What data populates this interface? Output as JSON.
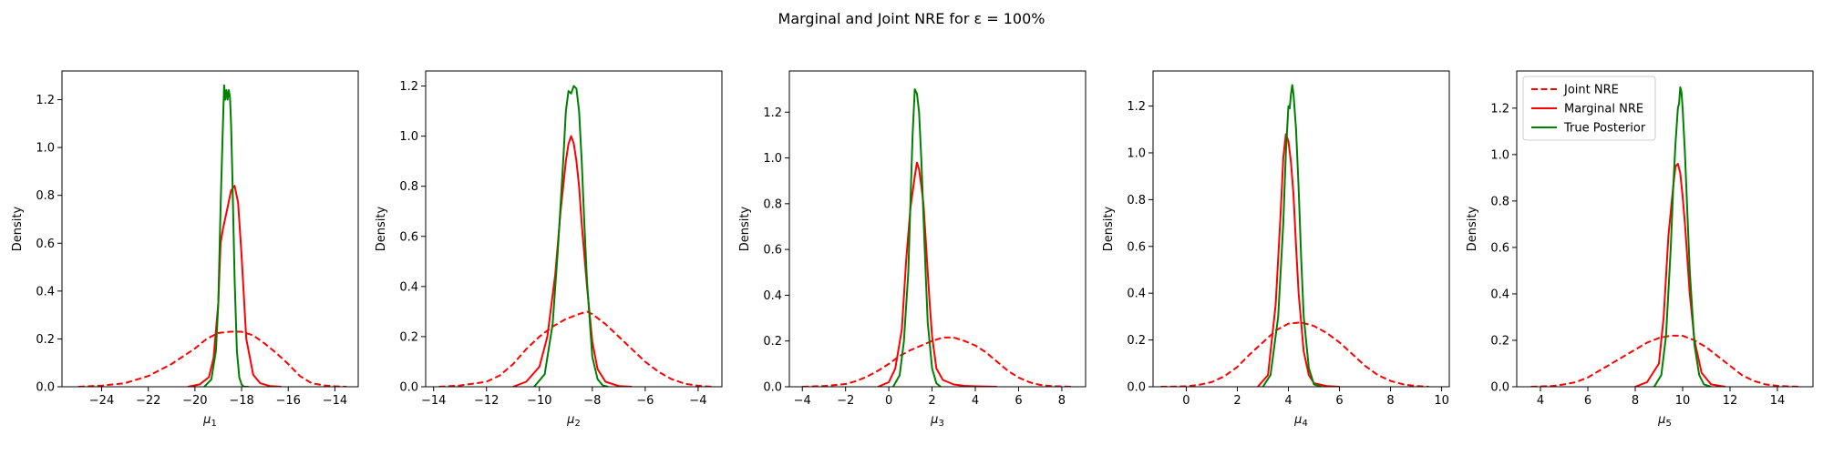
{
  "figure": {
    "title": "Marginal and Joint NRE for ε = 100%",
    "ylabel": "Density",
    "legend_entries": [
      "Joint NRE",
      "Marginal NRE",
      "True Posterior"
    ]
  },
  "colors": {
    "joint": "#ff0000",
    "marginal": "#ff0000",
    "true": "#008000"
  },
  "chart_data": [
    {
      "type": "line",
      "xlabel": "μ1",
      "ylabel": "Density",
      "xlim": [
        -25.7,
        -13.0
      ],
      "ylim": [
        0,
        1.32
      ],
      "xticks": [
        -24,
        -22,
        -20,
        -18,
        -16,
        -14
      ],
      "xtick_labels": [
        "−24",
        "−22",
        "−20",
        "−18",
        "−16",
        "−14"
      ],
      "yticks": [
        0.0,
        0.2,
        0.4,
        0.6,
        0.8,
        1.0,
        1.2
      ],
      "ytick_labels": [
        "0.0",
        "0.2",
        "0.4",
        "0.6",
        "0.8",
        "1.0",
        "1.2"
      ],
      "series": [
        {
          "name": "Joint NRE",
          "style": "dashed",
          "color": "#ff0000",
          "x": [
            -25.0,
            -24.0,
            -23.0,
            -22.0,
            -21.0,
            -20.0,
            -19.5,
            -19.0,
            -18.5,
            -18.0,
            -17.5,
            -17.0,
            -16.5,
            -16.0,
            -15.5,
            -15.0,
            -14.5,
            -14.0,
            -13.5
          ],
          "y": [
            0.0,
            0.005,
            0.015,
            0.045,
            0.095,
            0.16,
            0.2,
            0.225,
            0.23,
            0.23,
            0.215,
            0.18,
            0.14,
            0.095,
            0.045,
            0.015,
            0.006,
            0.002,
            0.0
          ]
        },
        {
          "name": "Marginal NRE",
          "style": "solid",
          "color": "#ff0000",
          "x": [
            -20.3,
            -19.8,
            -19.4,
            -19.2,
            -19.0,
            -18.9,
            -18.8,
            -18.6,
            -18.45,
            -18.3,
            -18.15,
            -18.0,
            -17.8,
            -17.5,
            -17.2,
            -16.8,
            -16.3
          ],
          "y": [
            0.0,
            0.01,
            0.04,
            0.12,
            0.35,
            0.6,
            0.66,
            0.75,
            0.82,
            0.84,
            0.77,
            0.55,
            0.2,
            0.05,
            0.015,
            0.003,
            0.0
          ]
        },
        {
          "name": "True Posterior",
          "style": "solid",
          "color": "#008000",
          "x": [
            -19.6,
            -19.3,
            -19.1,
            -19.0,
            -18.9,
            -18.8,
            -18.75,
            -18.7,
            -18.65,
            -18.6,
            -18.55,
            -18.5,
            -18.45,
            -18.4,
            -18.3,
            -18.2,
            -18.1,
            -18.0,
            -17.9,
            -17.7
          ],
          "y": [
            0.0,
            0.03,
            0.15,
            0.35,
            0.75,
            1.1,
            1.26,
            1.2,
            1.24,
            1.2,
            1.24,
            1.21,
            1.1,
            0.9,
            0.45,
            0.15,
            0.04,
            0.01,
            0.0,
            0.0
          ]
        }
      ]
    },
    {
      "type": "line",
      "xlabel": "μ2",
      "ylabel": "Density",
      "xlim": [
        -14.3,
        -3.1
      ],
      "ylim": [
        0,
        1.26
      ],
      "xticks": [
        -14,
        -12,
        -10,
        -8,
        -6,
        -4
      ],
      "xtick_labels": [
        "−14",
        "−12",
        "−10",
        "−8",
        "−6",
        "−4"
      ],
      "yticks": [
        0.0,
        0.2,
        0.4,
        0.6,
        0.8,
        1.0,
        1.2
      ],
      "ytick_labels": [
        "0.0",
        "0.2",
        "0.4",
        "0.6",
        "0.8",
        "1.0",
        "1.2"
      ],
      "series": [
        {
          "name": "Joint NRE",
          "style": "dashed",
          "color": "#ff0000",
          "x": [
            -13.8,
            -13.0,
            -12.0,
            -11.5,
            -11.0,
            -10.5,
            -10.0,
            -9.5,
            -9.0,
            -8.5,
            -8.2,
            -8.0,
            -7.5,
            -7.0,
            -6.5,
            -6.0,
            -5.5,
            -5.0,
            -4.5,
            -4.0,
            -3.5
          ],
          "y": [
            0.0,
            0.005,
            0.02,
            0.045,
            0.09,
            0.15,
            0.2,
            0.24,
            0.27,
            0.29,
            0.3,
            0.29,
            0.25,
            0.2,
            0.15,
            0.1,
            0.06,
            0.03,
            0.012,
            0.004,
            0.0
          ]
        },
        {
          "name": "Marginal NRE",
          "style": "solid",
          "color": "#ff0000",
          "x": [
            -11.0,
            -10.5,
            -10.0,
            -9.7,
            -9.4,
            -9.2,
            -9.0,
            -8.9,
            -8.8,
            -8.7,
            -8.6,
            -8.5,
            -8.4,
            -8.2,
            -8.0,
            -7.8,
            -7.5,
            -7.0,
            -6.5
          ],
          "y": [
            0.0,
            0.02,
            0.08,
            0.2,
            0.45,
            0.7,
            0.9,
            0.97,
            1.0,
            0.97,
            0.9,
            0.8,
            0.65,
            0.4,
            0.18,
            0.07,
            0.02,
            0.003,
            0.0
          ]
        },
        {
          "name": "True Posterior",
          "style": "solid",
          "color": "#008000",
          "x": [
            -10.2,
            -9.8,
            -9.5,
            -9.3,
            -9.1,
            -9.0,
            -8.9,
            -8.8,
            -8.7,
            -8.6,
            -8.5,
            -8.4,
            -8.3,
            -8.2,
            -8.0,
            -7.8,
            -7.6,
            -7.4
          ],
          "y": [
            0.0,
            0.05,
            0.25,
            0.55,
            0.9,
            1.1,
            1.18,
            1.17,
            1.2,
            1.19,
            1.1,
            0.9,
            0.65,
            0.42,
            0.12,
            0.03,
            0.005,
            0.0
          ]
        }
      ]
    },
    {
      "type": "line",
      "xlabel": "μ3",
      "ylabel": "Density",
      "xlim": [
        -4.6,
        9.1
      ],
      "ylim": [
        0,
        1.38
      ],
      "xticks": [
        -4,
        -2,
        0,
        2,
        4,
        6,
        8
      ],
      "xtick_labels": [
        "−4",
        "−2",
        "0",
        "2",
        "4",
        "6",
        "8"
      ],
      "yticks": [
        0.0,
        0.2,
        0.4,
        0.6,
        0.8,
        1.0,
        1.2
      ],
      "ytick_labels": [
        "0.0",
        "0.2",
        "0.4",
        "0.6",
        "0.8",
        "1.0",
        "1.2"
      ],
      "series": [
        {
          "name": "Joint NRE",
          "style": "dashed",
          "color": "#ff0000",
          "x": [
            -4.0,
            -3.0,
            -2.0,
            -1.5,
            -1.0,
            -0.5,
            0.0,
            0.5,
            1.0,
            1.5,
            2.0,
            2.5,
            3.0,
            3.5,
            4.0,
            4.5,
            5.0,
            5.5,
            6.0,
            6.5,
            7.0,
            7.5,
            8.0,
            8.5
          ],
          "y": [
            0.0,
            0.003,
            0.012,
            0.025,
            0.045,
            0.07,
            0.1,
            0.135,
            0.16,
            0.18,
            0.2,
            0.215,
            0.215,
            0.2,
            0.18,
            0.15,
            0.11,
            0.07,
            0.04,
            0.02,
            0.008,
            0.003,
            0.001,
            0.0
          ]
        },
        {
          "name": "Marginal NRE",
          "style": "solid",
          "color": "#ff0000",
          "x": [
            -0.5,
            0.0,
            0.3,
            0.6,
            0.8,
            1.0,
            1.1,
            1.2,
            1.3,
            1.4,
            1.5,
            1.6,
            1.7,
            1.8,
            1.9,
            2.0,
            2.2,
            2.5,
            3.0,
            3.5,
            4.0,
            5.0
          ],
          "y": [
            0.0,
            0.02,
            0.08,
            0.25,
            0.55,
            0.78,
            0.85,
            0.92,
            0.98,
            0.95,
            0.88,
            0.8,
            0.65,
            0.5,
            0.35,
            0.22,
            0.08,
            0.03,
            0.01,
            0.004,
            0.002,
            0.0
          ]
        },
        {
          "name": "True Posterior",
          "style": "solid",
          "color": "#008000",
          "x": [
            0.2,
            0.5,
            0.7,
            0.9,
            1.0,
            1.1,
            1.2,
            1.3,
            1.4,
            1.5,
            1.6,
            1.7,
            1.8,
            2.0,
            2.2,
            2.4
          ],
          "y": [
            0.0,
            0.05,
            0.2,
            0.5,
            0.8,
            1.1,
            1.3,
            1.28,
            1.2,
            1.0,
            0.75,
            0.5,
            0.28,
            0.08,
            0.015,
            0.0
          ]
        }
      ]
    },
    {
      "type": "line",
      "xlabel": "μ4",
      "ylabel": "Density",
      "xlim": [
        -1.3,
        10.3
      ],
      "ylim": [
        0,
        1.35
      ],
      "xticks": [
        0,
        2,
        4,
        6,
        8,
        10
      ],
      "xtick_labels": [
        "0",
        "2",
        "4",
        "6",
        "8",
        "10"
      ],
      "yticks": [
        0.0,
        0.2,
        0.4,
        0.6,
        0.8,
        1.0,
        1.2
      ],
      "ytick_labels": [
        "0.0",
        "0.2",
        "0.4",
        "0.6",
        "0.8",
        "1.0",
        "1.2"
      ],
      "series": [
        {
          "name": "Joint NRE",
          "style": "dashed",
          "color": "#ff0000",
          "x": [
            -1.0,
            0.0,
            0.5,
            1.0,
            1.5,
            2.0,
            2.5,
            3.0,
            3.5,
            4.0,
            4.5,
            5.0,
            5.5,
            6.0,
            6.5,
            7.0,
            7.5,
            8.0,
            8.5,
            9.0,
            9.5
          ],
          "y": [
            0.0,
            0.002,
            0.008,
            0.02,
            0.045,
            0.085,
            0.14,
            0.19,
            0.24,
            0.27,
            0.275,
            0.26,
            0.23,
            0.19,
            0.14,
            0.09,
            0.05,
            0.025,
            0.01,
            0.003,
            0.0
          ]
        },
        {
          "name": "Marginal NRE",
          "style": "solid",
          "color": "#ff0000",
          "x": [
            2.8,
            3.2,
            3.5,
            3.7,
            3.8,
            3.9,
            4.0,
            4.1,
            4.2,
            4.3,
            4.4,
            4.6,
            4.8,
            5.0,
            5.5,
            6.0
          ],
          "y": [
            0.0,
            0.05,
            0.35,
            0.75,
            0.98,
            1.08,
            1.05,
            0.96,
            0.82,
            0.6,
            0.4,
            0.15,
            0.05,
            0.015,
            0.003,
            0.0
          ]
        },
        {
          "name": "True Posterior",
          "style": "solid",
          "color": "#008000",
          "x": [
            3.0,
            3.3,
            3.6,
            3.8,
            3.9,
            4.0,
            4.05,
            4.1,
            4.15,
            4.2,
            4.3,
            4.4,
            4.5,
            4.6,
            4.8,
            5.0,
            5.3
          ],
          "y": [
            0.0,
            0.05,
            0.3,
            0.7,
            1.0,
            1.2,
            1.19,
            1.25,
            1.29,
            1.25,
            1.1,
            0.85,
            0.55,
            0.3,
            0.08,
            0.01,
            0.0
          ]
        }
      ]
    },
    {
      "type": "line",
      "xlabel": "μ5",
      "ylabel": "Density",
      "xlim": [
        3.0,
        15.5
      ],
      "ylim": [
        0,
        1.36
      ],
      "xticks": [
        4,
        6,
        8,
        10,
        12,
        14
      ],
      "xtick_labels": [
        "4",
        "6",
        "8",
        "10",
        "12",
        "14"
      ],
      "yticks": [
        0.0,
        0.2,
        0.4,
        0.6,
        0.8,
        1.0,
        1.2
      ],
      "ytick_labels": [
        "0.0",
        "0.2",
        "0.4",
        "0.6",
        "0.8",
        "1.0",
        "1.2"
      ],
      "series": [
        {
          "name": "Joint NRE",
          "style": "dashed",
          "color": "#ff0000",
          "x": [
            3.6,
            4.5,
            5.0,
            5.5,
            6.0,
            6.5,
            7.0,
            7.5,
            8.0,
            8.5,
            9.0,
            9.5,
            10.0,
            10.5,
            11.0,
            11.5,
            12.0,
            12.5,
            13.0,
            13.5,
            14.0,
            14.5,
            15.0
          ],
          "y": [
            0.0,
            0.003,
            0.01,
            0.02,
            0.04,
            0.07,
            0.1,
            0.13,
            0.16,
            0.19,
            0.21,
            0.22,
            0.22,
            0.2,
            0.17,
            0.13,
            0.09,
            0.05,
            0.025,
            0.01,
            0.004,
            0.001,
            0.0
          ]
        },
        {
          "name": "Marginal NRE",
          "style": "solid",
          "color": "#ff0000",
          "x": [
            8.0,
            8.5,
            9.0,
            9.2,
            9.4,
            9.6,
            9.7,
            9.8,
            9.9,
            10.0,
            10.1,
            10.2,
            10.3,
            10.5,
            10.8,
            11.2,
            11.8
          ],
          "y": [
            0.0,
            0.02,
            0.1,
            0.3,
            0.65,
            0.86,
            0.95,
            0.96,
            0.92,
            0.82,
            0.7,
            0.55,
            0.4,
            0.2,
            0.06,
            0.01,
            0.0
          ]
        },
        {
          "name": "True Posterior",
          "style": "solid",
          "color": "#008000",
          "x": [
            8.8,
            9.1,
            9.3,
            9.5,
            9.6,
            9.7,
            9.8,
            9.85,
            9.9,
            9.95,
            10.0,
            10.1,
            10.2,
            10.3,
            10.5,
            10.7,
            10.9,
            11.2
          ],
          "y": [
            0.0,
            0.05,
            0.22,
            0.6,
            0.85,
            1.05,
            1.2,
            1.22,
            1.29,
            1.27,
            1.2,
            1.0,
            0.75,
            0.5,
            0.18,
            0.05,
            0.01,
            0.0
          ]
        }
      ]
    }
  ]
}
